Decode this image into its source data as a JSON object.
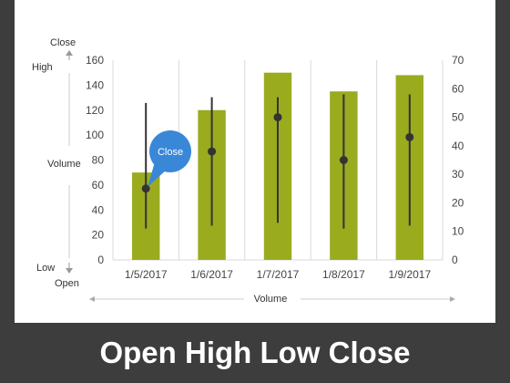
{
  "slide": {
    "title": "Open High Low Close"
  },
  "legend_left": {
    "close": "Close",
    "high": "High",
    "volume": "Volume",
    "low": "Low",
    "open": "Open"
  },
  "callout": {
    "label": "Close"
  },
  "colors": {
    "bar": "#9aab1e",
    "stem": "#333333",
    "callout": "#3a87d8",
    "background": "#3d3d3d"
  },
  "chart_data": {
    "type": "bar",
    "categories": [
      "1/5/2017",
      "1/6/2017",
      "1/7/2017",
      "1/8/2017",
      "1/9/2017"
    ],
    "volume": [
      70,
      120,
      150,
      135,
      148
    ],
    "high": [
      55,
      57,
      57,
      58,
      58
    ],
    "low": [
      11,
      12,
      13,
      11,
      12
    ],
    "close": [
      25,
      38,
      50,
      35,
      43
    ],
    "xlabel": "Volume",
    "ylim_left": [
      0,
      160
    ],
    "yticks_left": [
      0,
      20,
      40,
      60,
      80,
      100,
      120,
      140,
      160
    ],
    "ylim_right": [
      0,
      70
    ],
    "yticks_right": [
      0,
      10,
      20,
      30,
      40,
      50,
      60,
      70
    ],
    "grid": "vertical"
  }
}
